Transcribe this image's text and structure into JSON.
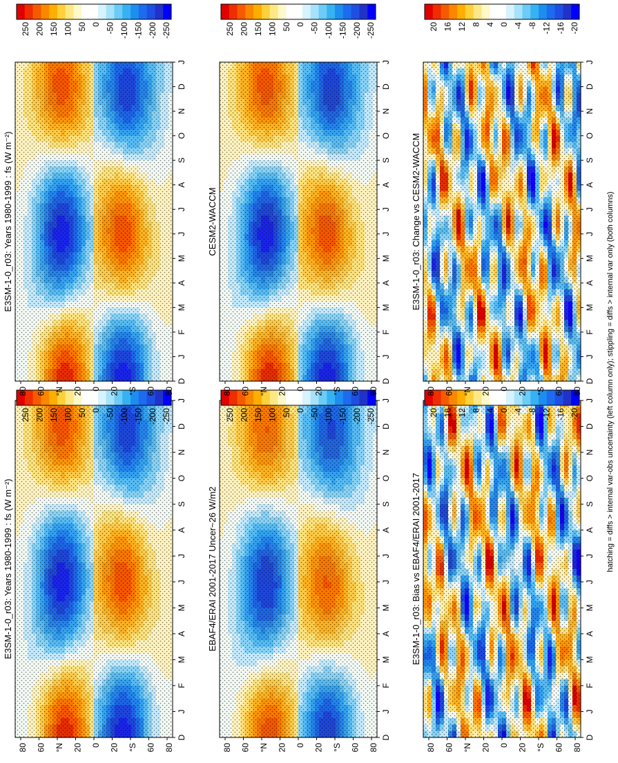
{
  "footnote": "hatching = diffs > internal var-obs uncertainty (left column only); stippling = diffs > internal var only (both columns)",
  "months": [
    "D",
    "J",
    "F",
    "M",
    "A",
    "M",
    "J",
    "J",
    "A",
    "S",
    "O",
    "N",
    "D",
    "J"
  ],
  "lat_labels": [
    "80",
    "60",
    "°N",
    "20",
    "0",
    "20",
    "°S",
    "60",
    "80"
  ],
  "colorbars": {
    "fs": {
      "labels": [
        "250",
        "200",
        "150",
        "100",
        "50",
        "0",
        "-50",
        "-100",
        "-150",
        "-200",
        "-250"
      ],
      "colors": [
        "#e00000",
        "#ef2d00",
        "#f65a00",
        "#fb8700",
        "#fdae00",
        "#fed03a",
        "#fee886",
        "#fff8c8",
        "#ffffff",
        "#ffffff",
        "#d6f3ff",
        "#a6e2fb",
        "#6ccbf7",
        "#36b2f3",
        "#1d8df0",
        "#1d6bee",
        "#1e4fe3",
        "#2232c9",
        "#0000ff"
      ]
    },
    "diff": {
      "labels": [
        "20",
        "16",
        "12",
        "8",
        "4",
        "0",
        "-4",
        "-8",
        "-12",
        "-16",
        "-20"
      ],
      "colors": [
        "#e00000",
        "#ef2d00",
        "#f65a00",
        "#fb8700",
        "#fdae00",
        "#fed03a",
        "#fee886",
        "#fff8c8",
        "#ffffff",
        "#ffffff",
        "#d6f3ff",
        "#a6e2fb",
        "#6ccbf7",
        "#36b2f3",
        "#1d8df0",
        "#1d6bee",
        "#1e4fe3",
        "#2232c9",
        "#0000ff"
      ]
    }
  },
  "panels": [
    {
      "id": "left-top",
      "title": "E3SM-1-0_r03: Years 1980-1999 : fs (W m⁻²)",
      "colorbar": "fs"
    },
    {
      "id": "left-mid",
      "title": "EBAF4/ERAI 2001-2017 Uncer~26 W/m2",
      "colorbar": "fs"
    },
    {
      "id": "left-bot",
      "title": "E3SM-1-0_r03: Bias vs EBAF4/ERAI 2001-2017",
      "colorbar": "diff"
    },
    {
      "id": "right-top",
      "title": "E3SM-1-0_r03: Years 1980-1999 : fs (W m⁻²)",
      "colorbar": "fs"
    },
    {
      "id": "right-mid",
      "title": "CESM2-WACCM",
      "colorbar": "fs"
    },
    {
      "id": "right-bot",
      "title": "E3SM-1-0_r03: Change vs CESM2-WACCM",
      "colorbar": "diff"
    }
  ],
  "chart_data": [
    {
      "type": "heatmap",
      "panel": "left-top",
      "title": "E3SM-1-0_r03: Years 1980-1999 : fs (W m⁻²)",
      "x": "month (Dec to Jan, 13 months)",
      "y": "latitude 90N to 90S",
      "range": [
        -250,
        250
      ],
      "units": "W m-2"
    },
    {
      "type": "heatmap",
      "panel": "left-mid",
      "title": "EBAF4/ERAI 2001-2017 Uncer~26 W/m2",
      "range": [
        -250,
        250
      ],
      "units": "W m-2"
    },
    {
      "type": "heatmap",
      "panel": "left-bot",
      "title": "E3SM-1-0_r03: Bias vs EBAF4/ERAI 2001-2017",
      "range": [
        -20,
        20
      ],
      "units": "W m-2"
    },
    {
      "type": "heatmap",
      "panel": "right-top",
      "title": "E3SM-1-0_r03: Years 1980-1999 : fs (W m⁻²)",
      "range": [
        -250,
        250
      ],
      "units": "W m-2"
    },
    {
      "type": "heatmap",
      "panel": "right-mid",
      "title": "CESM2-WACCM",
      "range": [
        -250,
        250
      ],
      "units": "W m-2"
    },
    {
      "type": "heatmap",
      "panel": "right-bot",
      "title": "E3SM-1-0_r03: Change vs CESM2-WACCM",
      "range": [
        -20,
        20
      ],
      "units": "W m-2"
    }
  ]
}
